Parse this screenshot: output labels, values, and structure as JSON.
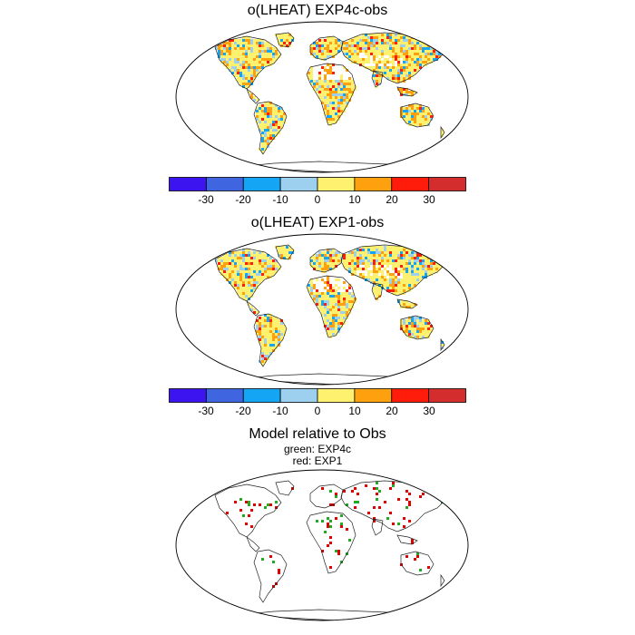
{
  "panels": [
    {
      "title": "o(LHEAT) EXP4c-obs"
    },
    {
      "title": "o(LHEAT) EXP1-obs"
    },
    {
      "title": "Model relative to Obs",
      "subtitle_lines": [
        "green: EXP4c",
        "red: EXP1"
      ]
    }
  ],
  "colorbar": {
    "colors": [
      "#3c14f0",
      "#3f66e0",
      "#14a5f5",
      "#9cd0ee",
      "#fff170",
      "#ffa00e",
      "#ff1c0b",
      "#d42d2d"
    ],
    "tick_labels": [
      "-30",
      "-20",
      "-10",
      "0",
      "10",
      "20",
      "30"
    ]
  },
  "legend_colors": {
    "EXP4c": "#22aa22",
    "EXP1": "#dd0000"
  }
}
